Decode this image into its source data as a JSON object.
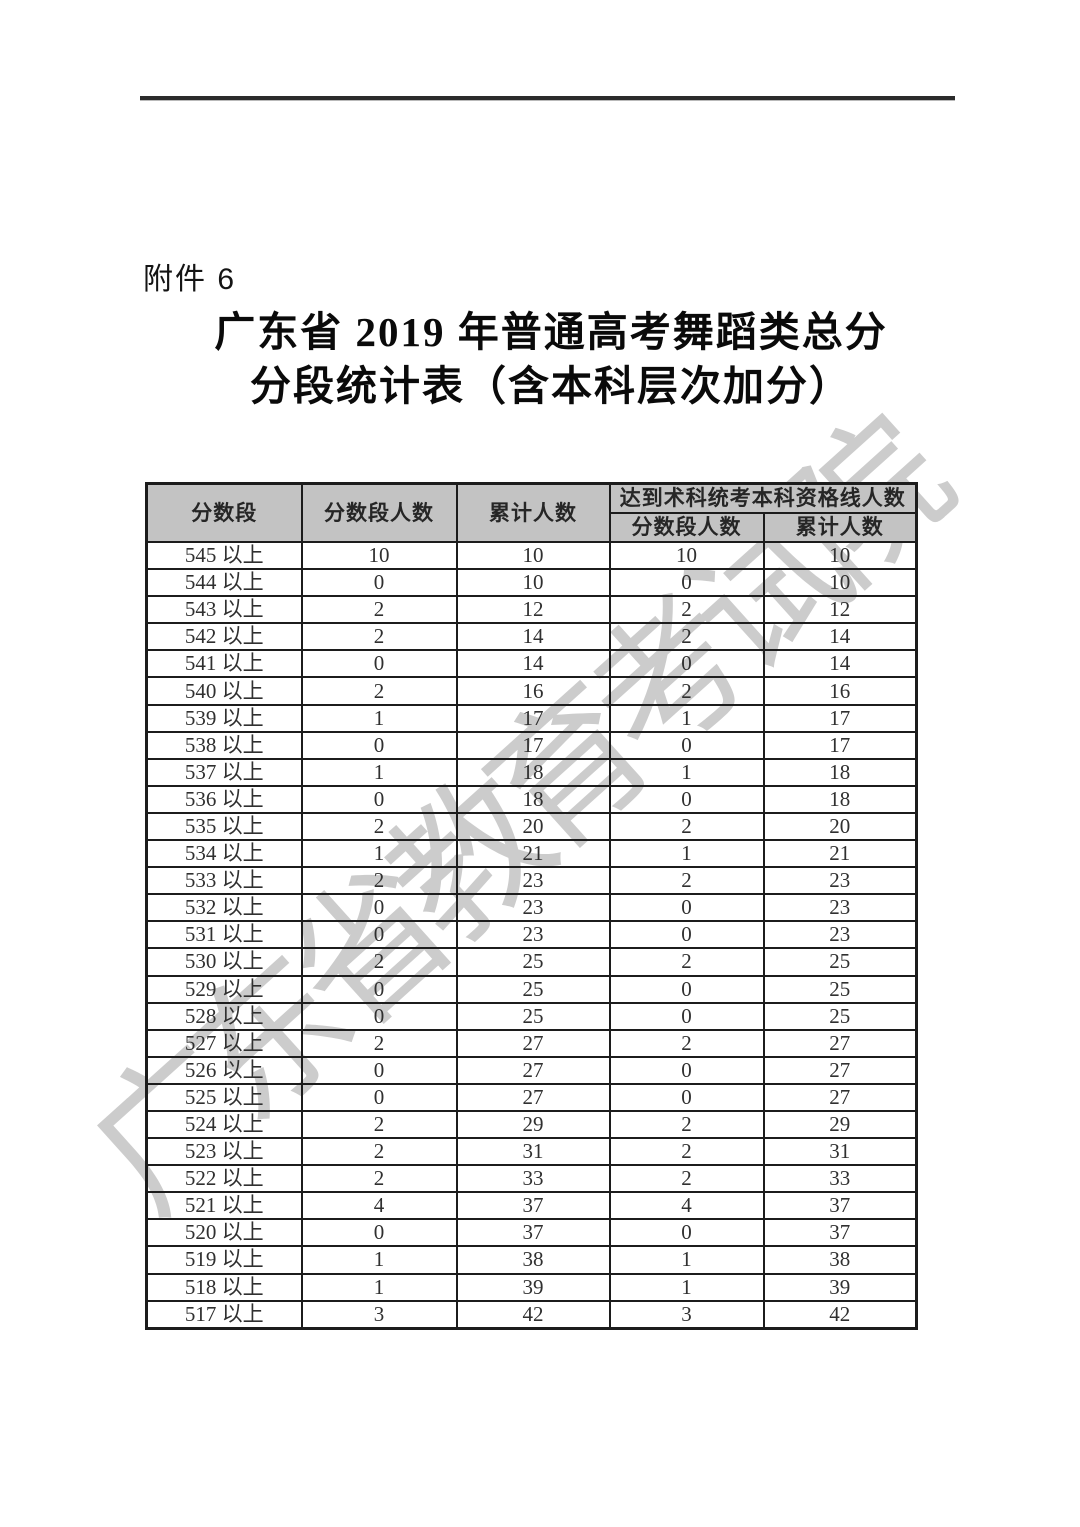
{
  "page": {
    "attachment_label": "附件 6",
    "title_line1": "广东省 2019 年普通高考舞蹈类总分",
    "title_line2": "分段统计表（含本科层次加分）",
    "watermark": "广东省教育考试院"
  },
  "colors": {
    "header_bg": "#c3c3c3",
    "table_border": "#1c1c1c",
    "watermark": "#c8c8c8",
    "rule": "#2b2b2b"
  },
  "table": {
    "headers": {
      "score_range": "分数段",
      "segment_count": "分数段人数",
      "cumulative": "累计人数",
      "qualified_group": "达到术科统考本科资格线人数",
      "sub_segment_count": "分数段人数",
      "sub_cumulative": "累计人数"
    },
    "rows": [
      {
        "range": "545 以上",
        "count": "10",
        "cum": "10",
        "q_count": "10",
        "q_cum": "10"
      },
      {
        "range": "544 以上",
        "count": "0",
        "cum": "10",
        "q_count": "0",
        "q_cum": "10"
      },
      {
        "range": "543 以上",
        "count": "2",
        "cum": "12",
        "q_count": "2",
        "q_cum": "12"
      },
      {
        "range": "542 以上",
        "count": "2",
        "cum": "14",
        "q_count": "2",
        "q_cum": "14"
      },
      {
        "range": "541 以上",
        "count": "0",
        "cum": "14",
        "q_count": "0",
        "q_cum": "14"
      },
      {
        "range": "540 以上",
        "count": "2",
        "cum": "16",
        "q_count": "2",
        "q_cum": "16"
      },
      {
        "range": "539 以上",
        "count": "1",
        "cum": "17",
        "q_count": "1",
        "q_cum": "17"
      },
      {
        "range": "538 以上",
        "count": "0",
        "cum": "17",
        "q_count": "0",
        "q_cum": "17"
      },
      {
        "range": "537 以上",
        "count": "1",
        "cum": "18",
        "q_count": "1",
        "q_cum": "18"
      },
      {
        "range": "536 以上",
        "count": "0",
        "cum": "18",
        "q_count": "0",
        "q_cum": "18"
      },
      {
        "range": "535 以上",
        "count": "2",
        "cum": "20",
        "q_count": "2",
        "q_cum": "20"
      },
      {
        "range": "534 以上",
        "count": "1",
        "cum": "21",
        "q_count": "1",
        "q_cum": "21"
      },
      {
        "range": "533 以上",
        "count": "2",
        "cum": "23",
        "q_count": "2",
        "q_cum": "23"
      },
      {
        "range": "532 以上",
        "count": "0",
        "cum": "23",
        "q_count": "0",
        "q_cum": "23"
      },
      {
        "range": "531 以上",
        "count": "0",
        "cum": "23",
        "q_count": "0",
        "q_cum": "23"
      },
      {
        "range": "530 以上",
        "count": "2",
        "cum": "25",
        "q_count": "2",
        "q_cum": "25"
      },
      {
        "range": "529 以上",
        "count": "0",
        "cum": "25",
        "q_count": "0",
        "q_cum": "25"
      },
      {
        "range": "528 以上",
        "count": "0",
        "cum": "25",
        "q_count": "0",
        "q_cum": "25"
      },
      {
        "range": "527 以上",
        "count": "2",
        "cum": "27",
        "q_count": "2",
        "q_cum": "27"
      },
      {
        "range": "526 以上",
        "count": "0",
        "cum": "27",
        "q_count": "0",
        "q_cum": "27"
      },
      {
        "range": "525 以上",
        "count": "0",
        "cum": "27",
        "q_count": "0",
        "q_cum": "27"
      },
      {
        "range": "524 以上",
        "count": "2",
        "cum": "29",
        "q_count": "2",
        "q_cum": "29"
      },
      {
        "range": "523 以上",
        "count": "2",
        "cum": "31",
        "q_count": "2",
        "q_cum": "31"
      },
      {
        "range": "522 以上",
        "count": "2",
        "cum": "33",
        "q_count": "2",
        "q_cum": "33"
      },
      {
        "range": "521 以上",
        "count": "4",
        "cum": "37",
        "q_count": "4",
        "q_cum": "37"
      },
      {
        "range": "520 以上",
        "count": "0",
        "cum": "37",
        "q_count": "0",
        "q_cum": "37"
      },
      {
        "range": "519 以上",
        "count": "1",
        "cum": "38",
        "q_count": "1",
        "q_cum": "38"
      },
      {
        "range": "518 以上",
        "count": "1",
        "cum": "39",
        "q_count": "1",
        "q_cum": "39"
      },
      {
        "range": "517 以上",
        "count": "3",
        "cum": "42",
        "q_count": "3",
        "q_cum": "42"
      }
    ]
  }
}
